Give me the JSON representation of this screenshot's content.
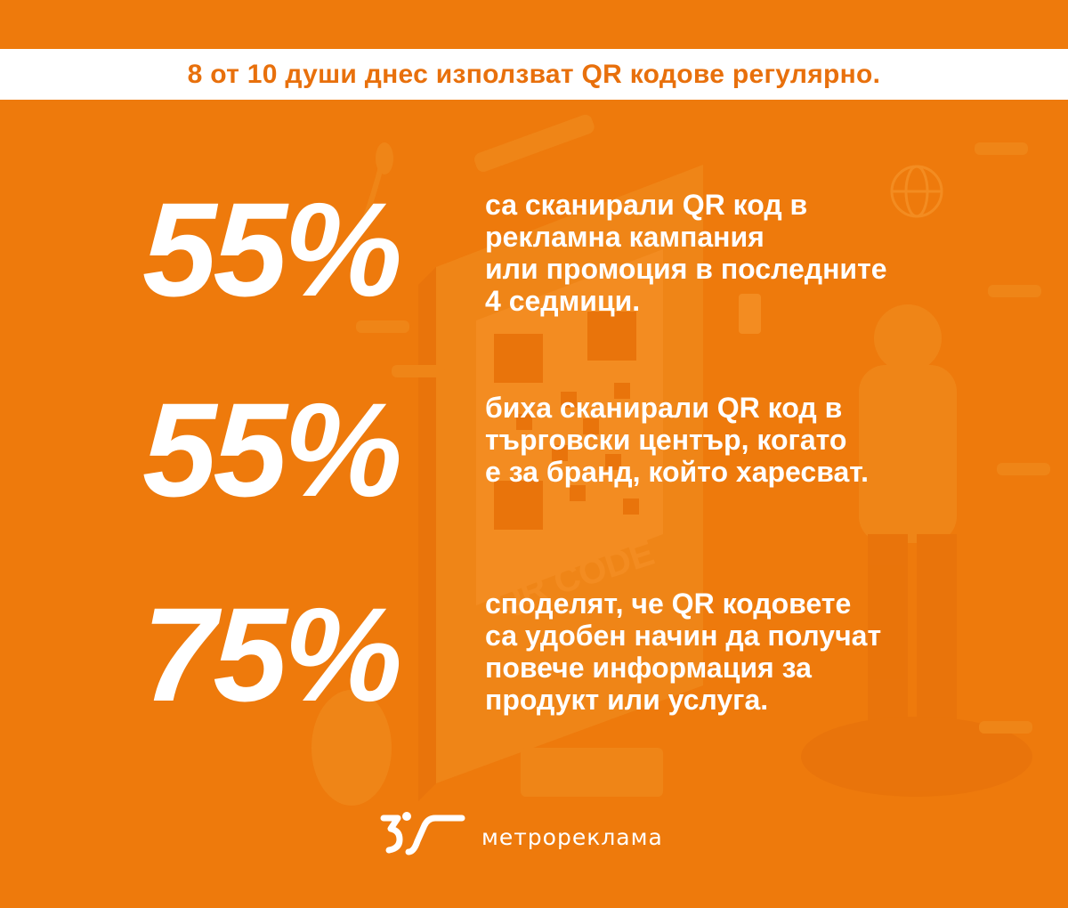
{
  "banner": {
    "title": "8 от 10 души днес използват QR кодове регулярно."
  },
  "colors": {
    "background": "#ee7a0c",
    "banner": "#ffffff",
    "accent": "#e8700c",
    "text": "#ffffff"
  },
  "stats": [
    {
      "value": "55%",
      "lines": [
        "са сканирали QR код в",
        "рекламна кампания",
        "или промоция в последните",
        "4 седмици."
      ]
    },
    {
      "value": "55%",
      "lines": [
        "биха сканирали QR код в",
        "търговски център, когато",
        "е за бранд, който харесват."
      ]
    },
    {
      "value": "75%",
      "lines": [
        "споделят, че QR кодовете",
        "са удобен начин да получат",
        "повече информация за",
        "продукт или услуга."
      ]
    }
  ],
  "background_art": {
    "qr_label": "QR CODE",
    "icons": [
      "qr-code-poster-icon",
      "globe-icon",
      "person-with-phone-icon",
      "plant-icon"
    ]
  },
  "logo": {
    "name": "метрореклама",
    "icon": "metroreklama-logo-icon"
  }
}
